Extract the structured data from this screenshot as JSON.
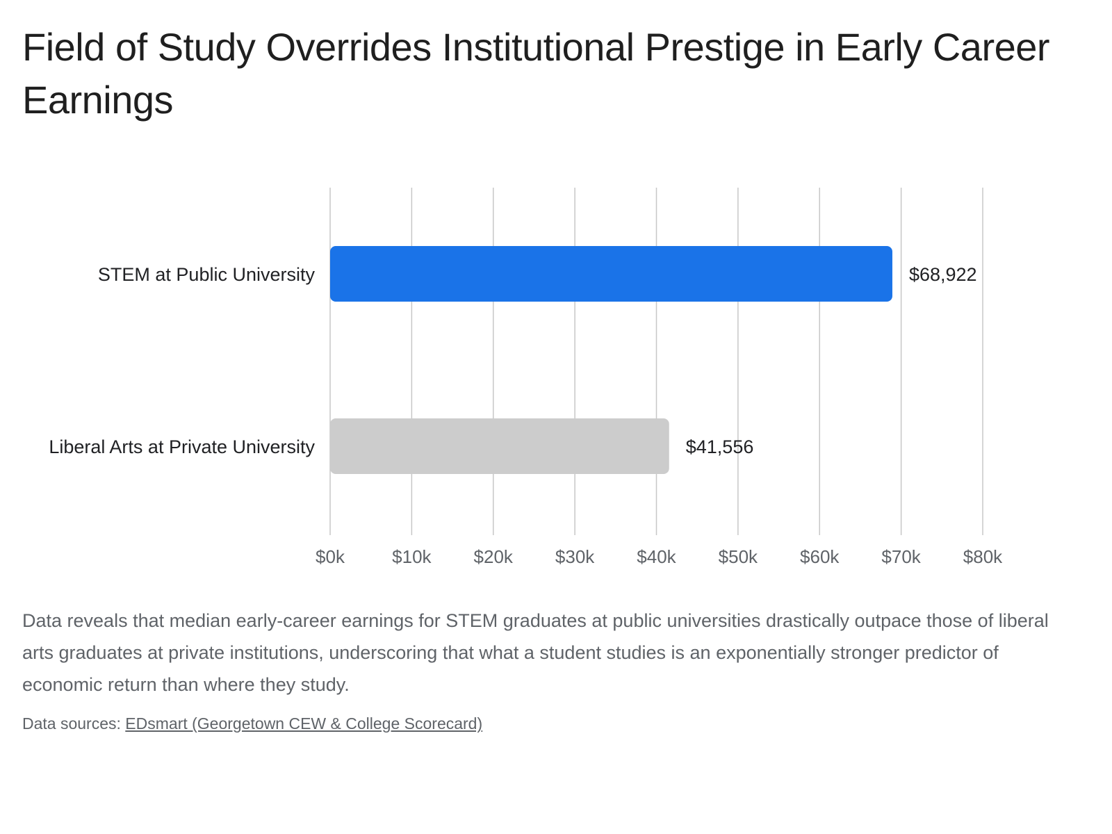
{
  "title": "Field of Study Overrides Institutional Prestige in Early Career Earnings",
  "description": "Data reveals that median early-career earnings for STEM graduates at public universities drastically outpace those of liberal arts graduates at private institutions, underscoring that what a student studies is an exponentially stronger predictor of economic return than where they study.",
  "sources": {
    "prefix": "Data sources:",
    "link_text": "EDsmart (Georgetown CEW & College Scorecard)"
  },
  "chart_data": {
    "type": "bar",
    "orientation": "horizontal",
    "title": "Field of Study Overrides Institutional Prestige in Early Career Earnings",
    "categories": [
      "STEM at Public University",
      "Liberal Arts at Private University"
    ],
    "values": [
      68922,
      41556
    ],
    "value_labels": [
      "$68,922",
      "$41,556"
    ],
    "bar_colors": [
      "#1a73e8",
      "#cccccc"
    ],
    "xlim": [
      0,
      80000
    ],
    "xticks": [
      0,
      10000,
      20000,
      30000,
      40000,
      50000,
      60000,
      70000,
      80000
    ],
    "xtick_labels": [
      "$0k",
      "$10k",
      "$20k",
      "$30k",
      "$40k",
      "$50k",
      "$60k",
      "$70k",
      "$80k"
    ],
    "xlabel": "",
    "ylabel": "",
    "grid": true,
    "legend": "none"
  }
}
